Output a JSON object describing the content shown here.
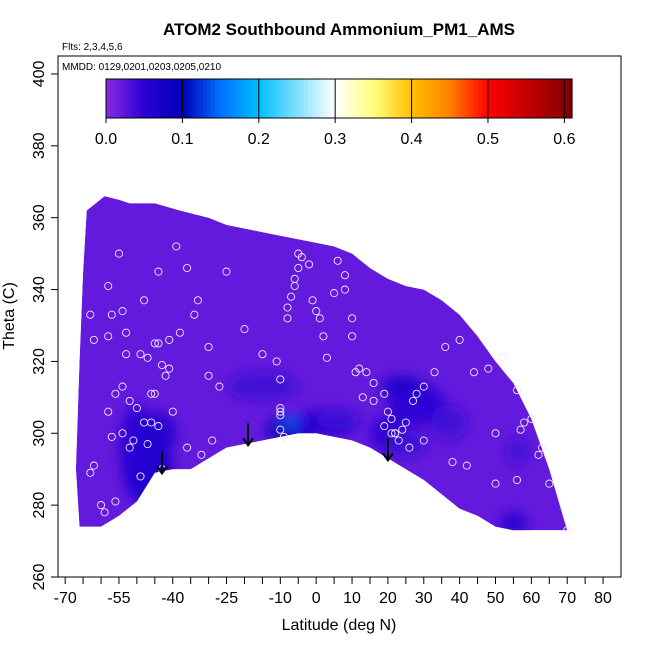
{
  "chart_data": {
    "type": "heatmap",
    "title": "ATOM2 Southbound Ammonium_PM1_AMS",
    "flights_note": "Flts: 2,3,4,5,6",
    "dates_note": "MMDD: 0129,0201,0203,0205,0210",
    "xlabel": "Latitude (deg N)",
    "ylabel": "Theta (C)",
    "xlim": [
      -72,
      85
    ],
    "ylim": [
      260,
      405
    ],
    "x_ticks": [
      -70,
      -65,
      -60,
      -55,
      -50,
      -45,
      -40,
      -35,
      -30,
      -25,
      -20,
      -15,
      -10,
      -5,
      0,
      5,
      10,
      15,
      20,
      25,
      30,
      35,
      40,
      45,
      50,
      55,
      60,
      65,
      70,
      75,
      80
    ],
    "x_tick_labels": [
      "-70",
      "",
      "",
      "-55",
      "",
      "",
      "-40",
      "",
      "",
      "-25",
      "",
      "",
      "-10",
      "",
      "0",
      "",
      "10",
      "",
      "20",
      "",
      "30",
      "",
      "40",
      "",
      "50",
      "",
      "60",
      "",
      "70",
      "",
      "80"
    ],
    "y_ticks": [
      260,
      280,
      300,
      320,
      340,
      360,
      380,
      400
    ],
    "y_tick_labels": [
      "260",
      "280",
      "300",
      "320",
      "340",
      "360",
      "380",
      "400"
    ],
    "colorbar": {
      "range": [
        0,
        0.61
      ],
      "ticks": [
        0.0,
        0.1,
        0.2,
        0.3,
        0.4,
        0.5,
        0.6
      ],
      "tick_labels": [
        "0.0",
        "0.1",
        "0.2",
        "0.3",
        "0.4",
        "0.5",
        "0.6"
      ],
      "stops": [
        {
          "v": 0.0,
          "c": "#8a2be2"
        },
        {
          "v": 0.05,
          "c": "#2a00d4"
        },
        {
          "v": 0.1,
          "c": "#0000b8"
        },
        {
          "v": 0.15,
          "c": "#0070ff"
        },
        {
          "v": 0.2,
          "c": "#00bfff"
        },
        {
          "v": 0.3,
          "c": "#ffffff"
        },
        {
          "v": 0.35,
          "c": "#ffff80"
        },
        {
          "v": 0.4,
          "c": "#ffc000"
        },
        {
          "v": 0.45,
          "c": "#ff8000"
        },
        {
          "v": 0.5,
          "c": "#ff0000"
        },
        {
          "v": 0.61,
          "c": "#800000"
        }
      ]
    },
    "background_value": 0.02,
    "domain_boundary": {
      "top": [
        [
          -64,
          362
        ],
        [
          -59,
          366
        ],
        [
          -55,
          365
        ],
        [
          -52,
          364
        ],
        [
          -45,
          364
        ],
        [
          -38,
          362
        ],
        [
          -30,
          360
        ],
        [
          -25,
          358
        ],
        [
          -20,
          357
        ],
        [
          -15,
          356
        ],
        [
          -10,
          355
        ],
        [
          -5,
          354
        ],
        [
          0,
          353
        ],
        [
          5,
          352
        ],
        [
          10,
          350
        ],
        [
          15,
          346
        ],
        [
          20,
          343
        ],
        [
          25,
          341
        ],
        [
          30,
          340
        ],
        [
          35,
          337
        ],
        [
          40,
          333
        ],
        [
          45,
          327
        ],
        [
          50,
          320
        ],
        [
          55,
          314
        ],
        [
          60,
          304
        ],
        [
          65,
          290
        ],
        [
          70,
          273
        ]
      ],
      "bottom": [
        [
          70,
          273
        ],
        [
          65,
          273
        ],
        [
          60,
          273
        ],
        [
          55,
          273
        ],
        [
          50,
          274
        ],
        [
          45,
          277
        ],
        [
          40,
          279
        ],
        [
          35,
          283
        ],
        [
          30,
          287
        ],
        [
          25,
          290
        ],
        [
          20,
          293
        ],
        [
          15,
          296
        ],
        [
          10,
          298
        ],
        [
          5,
          299
        ],
        [
          0,
          300
        ],
        [
          -5,
          300
        ],
        [
          -10,
          299
        ],
        [
          -15,
          298
        ],
        [
          -20,
          297
        ],
        [
          -25,
          296
        ],
        [
          -30,
          293
        ],
        [
          -35,
          290
        ],
        [
          -40,
          290
        ],
        [
          -45,
          289
        ],
        [
          -50,
          281
        ],
        [
          -55,
          277
        ],
        [
          -60,
          274
        ],
        [
          -66,
          274
        ],
        [
          -67,
          290
        ],
        [
          -66,
          320
        ],
        [
          -65,
          345
        ],
        [
          -64,
          362
        ]
      ]
    },
    "patches": [
      {
        "lat": -47,
        "theta": 287,
        "value": 0.16,
        "rlat": 3,
        "rtheta": 5
      },
      {
        "lat": -47,
        "theta": 290,
        "value": 0.07,
        "rlat": 7,
        "rtheta": 10
      },
      {
        "lat": -50,
        "theta": 296,
        "value": 0.05,
        "rlat": 5,
        "rtheta": 12
      },
      {
        "lat": -44,
        "theta": 300,
        "value": 0.06,
        "rlat": 5,
        "rtheta": 6
      },
      {
        "lat": -15,
        "theta": 313,
        "value": 0.04,
        "rlat": 10,
        "rtheta": 4
      },
      {
        "lat": -7,
        "theta": 301,
        "value": 0.09,
        "rlat": 7,
        "rtheta": 4
      },
      {
        "lat": -6,
        "theta": 303,
        "value": 0.14,
        "rlat": 4,
        "rtheta": 2
      },
      {
        "lat": 3,
        "theta": 303,
        "value": 0.05,
        "rlat": 9,
        "rtheta": 4
      },
      {
        "lat": 6,
        "theta": 304,
        "value": 0.04,
        "rlat": 6,
        "rtheta": 3
      },
      {
        "lat": 24,
        "theta": 313,
        "value": 0.07,
        "rlat": 6,
        "rtheta": 3
      },
      {
        "lat": 28,
        "theta": 308,
        "value": 0.05,
        "rlat": 8,
        "rtheta": 6
      },
      {
        "lat": 20,
        "theta": 300,
        "value": 0.05,
        "rlat": 5,
        "rtheta": 5
      },
      {
        "lat": 37,
        "theta": 303,
        "value": 0.04,
        "rlat": 5,
        "rtheta": 5
      },
      {
        "lat": 25,
        "theta": 297,
        "value": 0.04,
        "rlat": 6,
        "rtheta": 4
      },
      {
        "lat": 55,
        "theta": 275,
        "value": 0.06,
        "rlat": 4,
        "rtheta": 3
      },
      {
        "lat": 56,
        "theta": 295,
        "value": 0.04,
        "rlat": 3,
        "rtheta": 4
      }
    ],
    "observations": {
      "lat": [
        -62,
        -57,
        -54,
        -51,
        -48,
        -45,
        -42,
        -47,
        -45,
        -53,
        -57,
        -58,
        -58,
        -46,
        -58,
        -56,
        -54,
        -52,
        -50,
        -46,
        -44,
        -41,
        -38,
        -33,
        -30,
        -27,
        -48,
        -44,
        -39,
        -36,
        -34,
        -30,
        -25,
        -20,
        -15,
        -11,
        -10,
        -10,
        -10,
        -10,
        -10,
        -9,
        -8,
        -8,
        -7,
        -6,
        -6,
        -5,
        -5,
        -4,
        -2,
        -1,
        0,
        1,
        2,
        3,
        5,
        6,
        8,
        8,
        10,
        10,
        11,
        12,
        13,
        14,
        16,
        16,
        19,
        20,
        21,
        22,
        23,
        24,
        25,
        27,
        28,
        30,
        33,
        36,
        40,
        44,
        48,
        52,
        56,
        60,
        -43,
        -49,
        -56,
        -60,
        -59,
        -63,
        57,
        58,
        62,
        63,
        65,
        50,
        50,
        56,
        42,
        38,
        30,
        26,
        22,
        21,
        19,
        -52,
        -47,
        -44,
        -40,
        -36,
        -32,
        -29,
        -41,
        -43,
        -53,
        -49,
        -62,
        -63,
        -55,
        -54,
        70
      ],
      "theta": [
        291,
        299,
        300,
        298,
        303,
        311,
        316,
        321,
        325,
        328,
        333,
        341,
        327,
        303,
        306,
        311,
        313,
        309,
        307,
        311,
        325,
        326,
        328,
        337,
        316,
        313,
        337,
        345,
        352,
        346,
        333,
        324,
        345,
        329,
        322,
        320,
        315,
        305,
        307,
        306,
        301,
        299,
        332,
        335,
        338,
        341,
        343,
        346,
        350,
        349,
        347,
        337,
        334,
        332,
        327,
        321,
        339,
        348,
        344,
        340,
        327,
        332,
        317,
        318,
        310,
        317,
        314,
        309,
        311,
        306,
        304,
        300,
        298,
        301,
        303,
        309,
        311,
        313,
        317,
        324,
        326,
        317,
        318,
        321,
        312,
        304,
        290,
        288,
        281,
        280,
        278,
        289,
        301,
        303,
        294,
        296,
        286,
        300,
        286,
        287,
        291,
        292,
        298,
        296,
        300,
        300,
        302,
        296,
        297,
        302,
        306,
        296,
        294,
        298,
        318,
        319,
        322,
        322,
        326,
        333,
        350,
        334,
        273
      ]
    },
    "arrows_at_lat": [
      -43,
      -19,
      20
    ]
  }
}
